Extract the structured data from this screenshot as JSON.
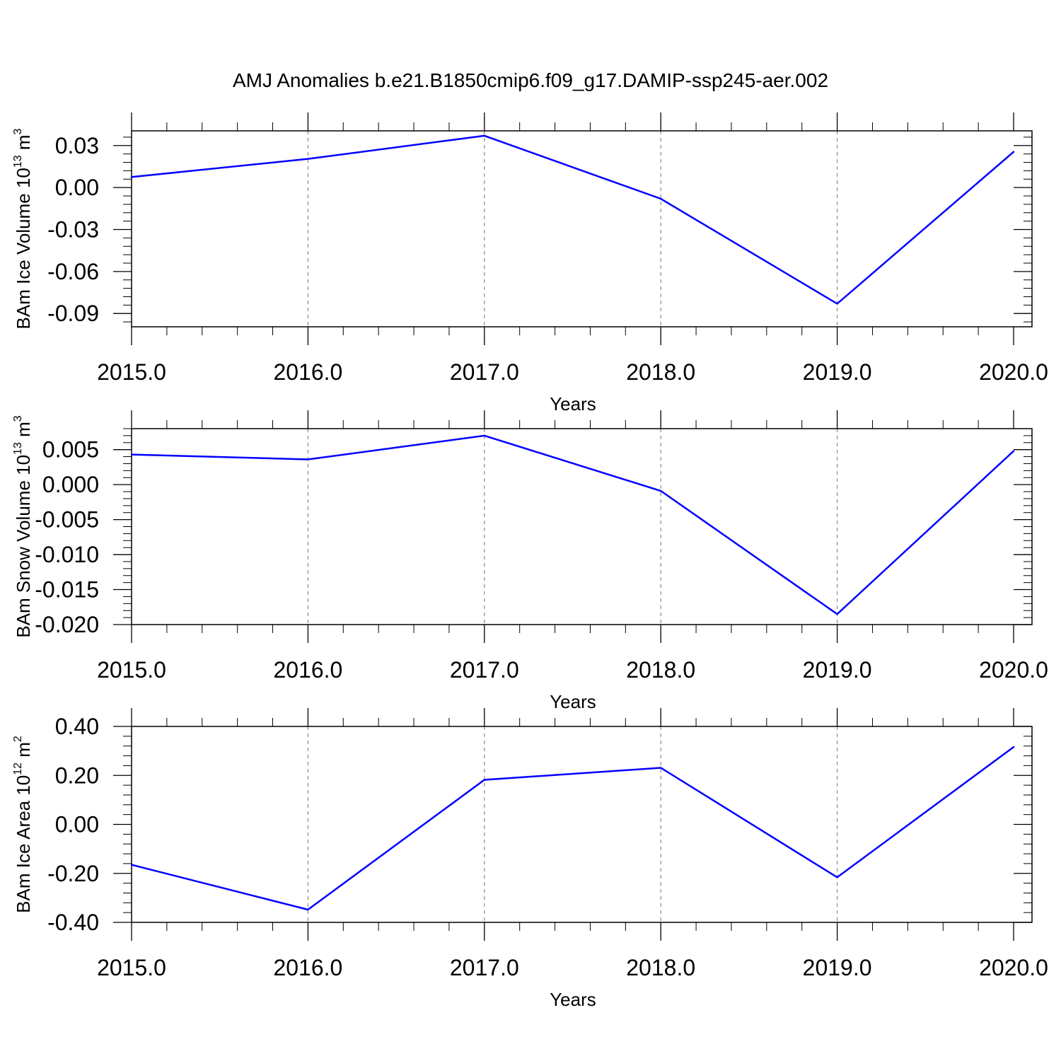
{
  "title": "AMJ Anomalies b.e21.B1850cmip6.f09_g17.DAMIP-ssp245-aer.002",
  "line_color": "#0000ff",
  "chart_data": [
    {
      "type": "line",
      "ylabel": {
        "main": "BAm Ice Volume 10",
        "sup": "13",
        "unit": " m",
        "unit_sup": "3"
      },
      "xlabel": "Years",
      "x_ticks": [
        "2015.0",
        "2016.0",
        "2017.0",
        "2018.0",
        "2019.0",
        "2020.0"
      ],
      "y_ticks": [
        "0.03",
        "0.00",
        "-0.03",
        "-0.06",
        "-0.09"
      ],
      "y_tick_values": [
        0.03,
        0.0,
        -0.03,
        -0.06,
        -0.09
      ],
      "xlim": [
        2015,
        2020.1
      ],
      "ylim": [
        -0.0995,
        0.0405
      ],
      "grid": "vertical dashed at major x ticks",
      "x": [
        2015,
        2016,
        2017,
        2018,
        2019,
        2020
      ],
      "y": [
        0.0075,
        0.0205,
        0.037,
        -0.008,
        -0.083,
        0.0255
      ]
    },
    {
      "type": "line",
      "ylabel": {
        "main": "BAm Snow Volume 10",
        "sup": "13",
        "unit": " m",
        "unit_sup": "3"
      },
      "xlabel": "Years",
      "x_ticks": [
        "2015.0",
        "2016.0",
        "2017.0",
        "2018.0",
        "2019.0",
        "2020.0"
      ],
      "y_ticks": [
        "0.005",
        "0.000",
        "-0.005",
        "-0.010",
        "-0.015",
        "-0.020"
      ],
      "y_tick_values": [
        0.005,
        0.0,
        -0.005,
        -0.01,
        -0.015,
        -0.02
      ],
      "xlim": [
        2015,
        2020.1
      ],
      "ylim": [
        -0.02,
        0.008
      ],
      "grid": "vertical dashed at major x ticks",
      "x": [
        2015,
        2016,
        2017,
        2018,
        2019,
        2020
      ],
      "y": [
        0.0043,
        0.0036,
        0.007,
        -0.0009,
        -0.0185,
        0.0048
      ]
    },
    {
      "type": "line",
      "ylabel": {
        "main": "BAm Ice Area 10",
        "sup": "12",
        "unit": " m",
        "unit_sup": "2"
      },
      "xlabel": "Years",
      "x_ticks": [
        "2015.0",
        "2016.0",
        "2017.0",
        "2018.0",
        "2019.0",
        "2020.0"
      ],
      "y_ticks": [
        "0.40",
        "0.20",
        "0.00",
        "-0.20",
        "-0.40"
      ],
      "y_tick_values": [
        0.4,
        0.2,
        0.0,
        -0.2,
        -0.4
      ],
      "xlim": [
        2015,
        2020.1
      ],
      "ylim": [
        -0.4,
        0.4
      ],
      "grid": "vertical dashed at major x ticks",
      "x": [
        2015,
        2016,
        2017,
        2018,
        2019,
        2020
      ],
      "y": [
        -0.165,
        -0.348,
        0.182,
        0.231,
        -0.216,
        0.316
      ]
    }
  ]
}
